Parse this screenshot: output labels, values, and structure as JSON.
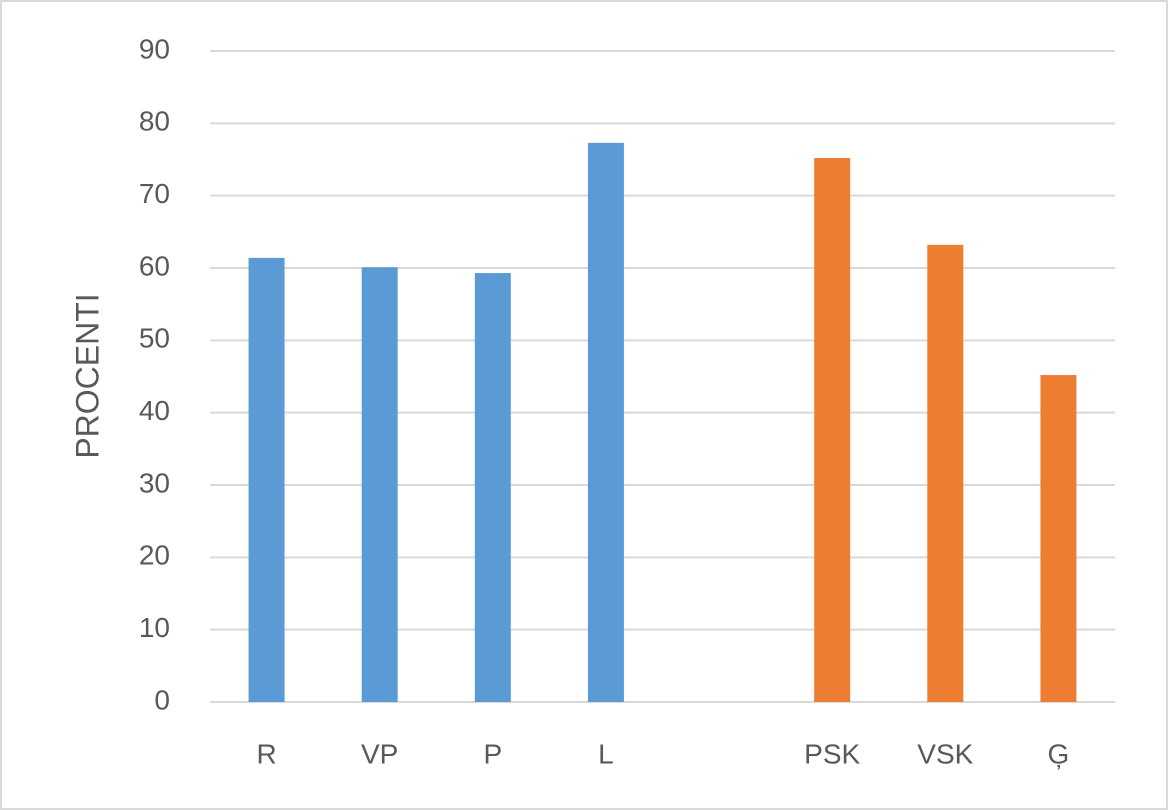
{
  "chart_data": {
    "type": "bar",
    "y_label": "PROCENTI",
    "categories": [
      "R",
      "VP",
      "P",
      "L",
      null,
      "PSK",
      "VSK",
      "Ģ"
    ],
    "values": [
      61.4,
      60.1,
      59.3,
      77.3,
      null,
      75.2,
      63.2,
      45.2
    ],
    "colors": [
      "#5b9bd5",
      "#5b9bd5",
      "#5b9bd5",
      "#5b9bd5",
      null,
      "#ed7d31",
      "#ed7d31",
      "#ed7d31"
    ],
    "ylim": [
      0,
      90
    ],
    "yticks": [
      0,
      10,
      20,
      30,
      40,
      50,
      60,
      70,
      80,
      90
    ],
    "grid": true
  }
}
